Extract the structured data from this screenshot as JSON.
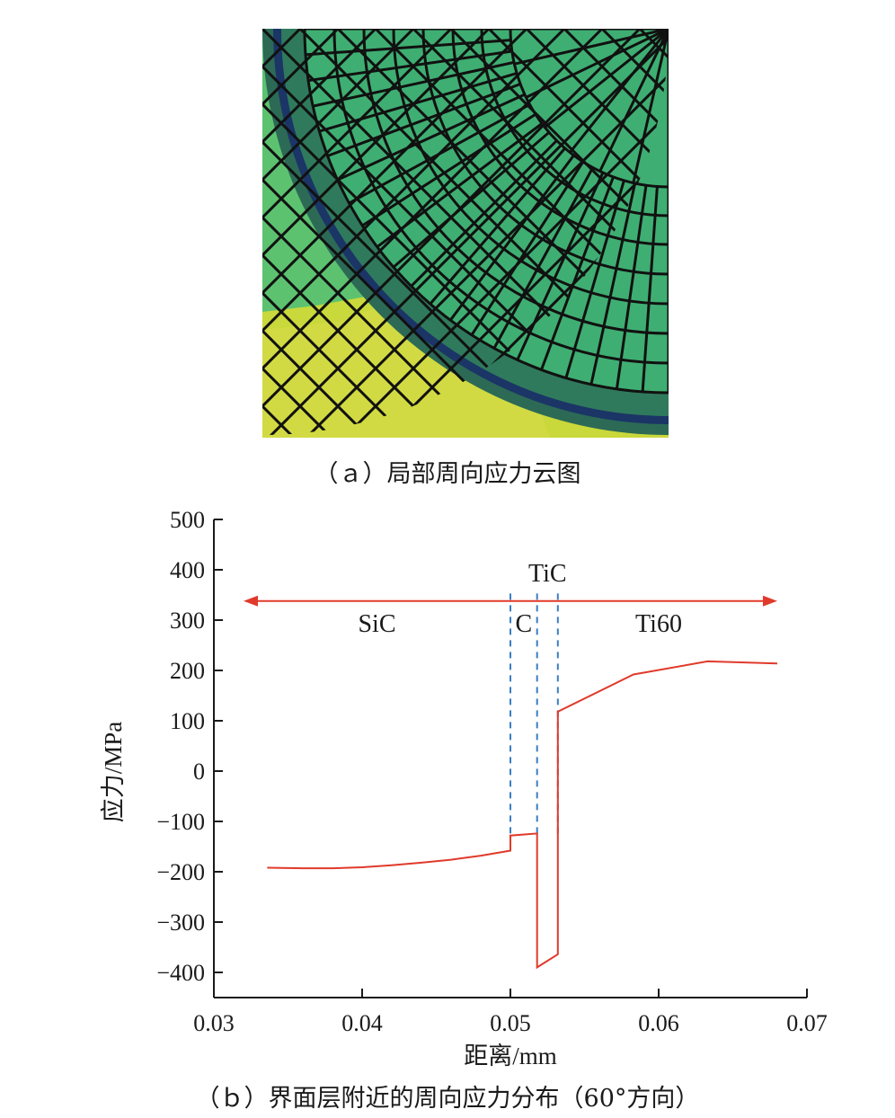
{
  "figure_a": {
    "caption": "（ａ）局部周向应力云图",
    "colors": {
      "outer_green": "#5cc270",
      "outer_yellow": "#c9d83a",
      "inner_teal": "#3fae72",
      "interface_band": "#1b3566",
      "mesh_line": "#111111"
    }
  },
  "figure_b": {
    "caption": "（ｂ）界面层附近的周向应力分布（60°方向）"
  },
  "chart_data": {
    "type": "line",
    "title": "",
    "xlabel": "距离/mm",
    "ylabel": "应力/MPa",
    "xlim": [
      0.03,
      0.07
    ],
    "ylim": [
      -450,
      500
    ],
    "x_ticks": [
      0.03,
      0.04,
      0.05,
      0.06,
      0.07
    ],
    "x_tick_labels": [
      "0.03",
      "0.04",
      "0.05",
      "0.06",
      "0.07"
    ],
    "y_ticks": [
      500,
      400,
      300,
      200,
      100,
      0,
      -100,
      -200,
      -300,
      -400
    ],
    "y_tick_labels": [
      "500",
      "400",
      "300",
      "200",
      "100",
      "0",
      "−100",
      "−200",
      "−300",
      "−400"
    ],
    "grid": false,
    "series": [
      {
        "color": "#e03a2a",
        "x": [
          0.0336,
          0.036,
          0.038,
          0.04,
          0.042,
          0.044,
          0.046,
          0.048,
          0.05,
          0.05,
          0.0518,
          0.0518,
          0.0532,
          0.0532,
          0.0583,
          0.0633,
          0.068
        ],
        "y": [
          -192,
          -193,
          -193,
          -191,
          -187,
          -182,
          -176,
          -168,
          -158,
          -128,
          -124,
          -390,
          -364,
          118,
          192,
          218,
          214
        ]
      }
    ],
    "region_arrow": {
      "from": 0.032,
      "to": 0.068,
      "y": 338,
      "color": "#e03a2a"
    },
    "boundaries": [
      {
        "x": 0.05,
        "color": "#3a7ec2",
        "style": "dashed"
      },
      {
        "x": 0.0518,
        "color": "#3a7ec2",
        "style": "dashed"
      },
      {
        "x": 0.0532,
        "color": "#3a7ec2",
        "style": "dashed"
      }
    ],
    "region_labels": [
      {
        "text": "SiC",
        "x": 0.041,
        "y": 295
      },
      {
        "text": "C",
        "x": 0.0509,
        "y": 295
      },
      {
        "text": "TiC",
        "x": 0.0525,
        "y": 395
      },
      {
        "text": "Ti60",
        "x": 0.06,
        "y": 295
      }
    ]
  }
}
